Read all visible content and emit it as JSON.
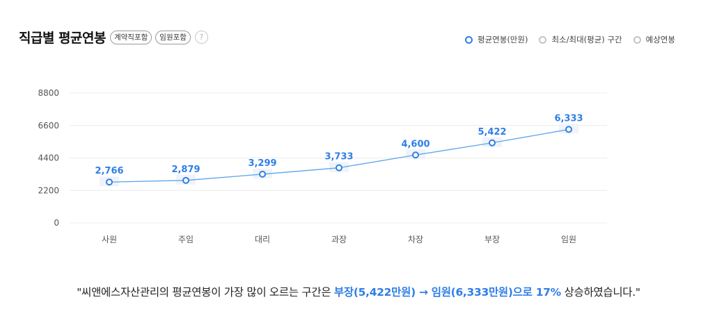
{
  "header": {
    "title": "직급별 평균연봉",
    "tags": [
      "계약직포함",
      "임원포함"
    ],
    "help_icon": "?"
  },
  "legend": [
    {
      "label": "평균연봉(만원)",
      "active": true
    },
    {
      "label": "최소/최대(평균) 구간",
      "active": false
    },
    {
      "label": "예상연봉",
      "active": false
    }
  ],
  "colors": {
    "accent": "#2f7ee6",
    "line": "#5aa5ec",
    "grid": "#ececec",
    "band": "#eef2f9",
    "inactive_legend": "#c4c4c4"
  },
  "chart_data": {
    "type": "line",
    "categories": [
      "사원",
      "주임",
      "대리",
      "과장",
      "차장",
      "부장",
      "임원"
    ],
    "series": [
      {
        "name": "평균연봉(만원)",
        "values": [
          2766,
          2879,
          3299,
          3733,
          4600,
          5422,
          6333
        ]
      }
    ],
    "data_labels": [
      "2,766",
      "2,879",
      "3,299",
      "3,733",
      "4,600",
      "5,422",
      "6,333"
    ],
    "yticks": [
      0,
      2200,
      4400,
      6600,
      8800
    ],
    "ylim": [
      0,
      8800
    ],
    "grid": true,
    "legend_position": "top-right"
  },
  "summary": {
    "prefix": "\"씨앤에스자산관리의 평균연봉이 가장 많이 오르는 구간은 ",
    "highlight": "부장(5,422만원) → 임원(6,333만원)으로 17%",
    "suffix": " 상승하였습니다.\""
  }
}
